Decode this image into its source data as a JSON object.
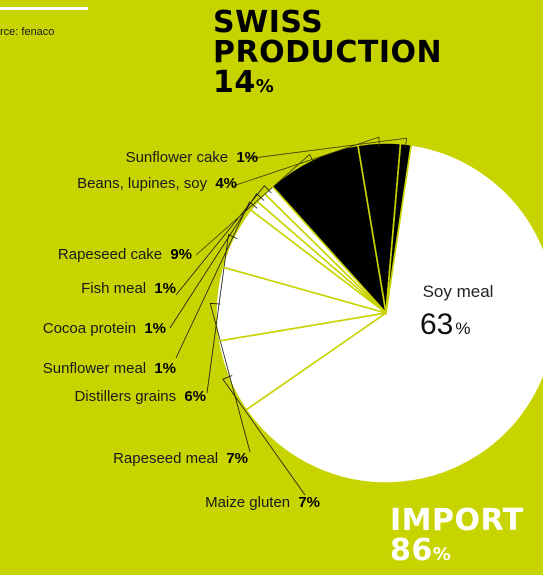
{
  "source": "rce: fenaco",
  "swiss": {
    "line1": "SWISS",
    "line2": "PRODUCTION",
    "value": "14",
    "unit": "%"
  },
  "import": {
    "label": "IMPORT",
    "value": "86",
    "unit": "%"
  },
  "colors": {
    "background": "#c8d400",
    "swiss": "#000000",
    "import": "#ffffff",
    "lines": "#c8d400"
  },
  "chart_data": {
    "type": "pie",
    "slices": [
      {
        "name": "Soy meal",
        "value": 63,
        "group": "import"
      },
      {
        "name": "Maize gluten",
        "value": 7,
        "group": "import"
      },
      {
        "name": "Rapeseed meal",
        "value": 7,
        "group": "import"
      },
      {
        "name": "Distillers grains",
        "value": 6,
        "group": "import"
      },
      {
        "name": "Sunflower meal",
        "value": 1,
        "group": "import"
      },
      {
        "name": "Cocoa protein",
        "value": 1,
        "group": "import"
      },
      {
        "name": "Fish meal",
        "value": 1,
        "group": "import"
      },
      {
        "name": "Rapeseed cake",
        "value": 9,
        "group": "swiss"
      },
      {
        "name": "Beans, lupines, soy",
        "value": 4,
        "group": "swiss"
      },
      {
        "name": "Sunflower cake",
        "value": 1,
        "group": "swiss"
      }
    ],
    "unit": "%"
  }
}
